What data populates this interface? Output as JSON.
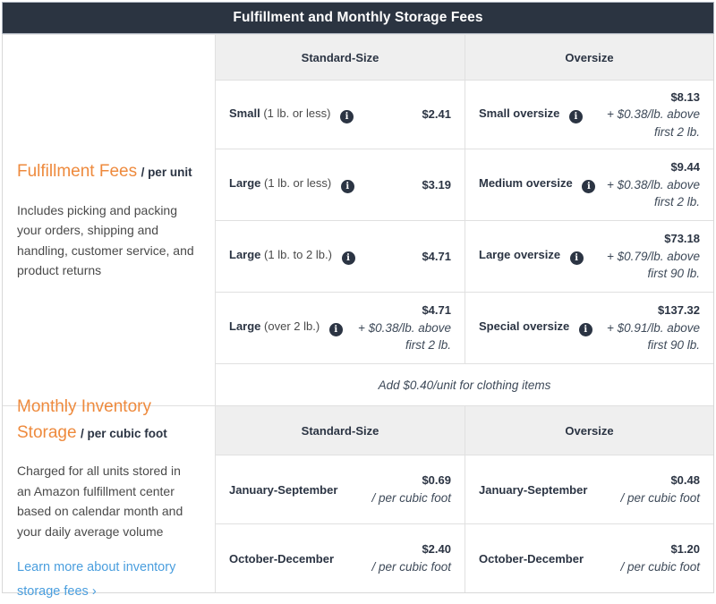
{
  "title": "Fulfillment and Monthly Storage Fees",
  "colors": {
    "header_bg": "#2b3441",
    "accent_orange": "#ee8a3d",
    "link_blue": "#4a9ede",
    "column_header_bg": "#efefef",
    "border": "#e0e0e0"
  },
  "icons": {
    "info": "i"
  },
  "fulfillment": {
    "heading": "Fulfillment Fees",
    "heading_suffix": "/ per unit",
    "description": "Includes picking and packing your orders, shipping and handling, customer service, and product returns",
    "columns": {
      "standard": "Standard-Size",
      "oversize": "Oversize"
    },
    "standard_rows": [
      {
        "name": "Small",
        "detail": "(1 lb. or less)",
        "price": "$2.41",
        "note": ""
      },
      {
        "name": "Large",
        "detail": "(1 lb. or less)",
        "price": "$3.19",
        "note": ""
      },
      {
        "name": "Large",
        "detail": "(1 lb. to 2 lb.)",
        "price": "$4.71",
        "note": ""
      },
      {
        "name": "Large",
        "detail": "(over 2 lb.)",
        "price": "$4.71",
        "note": "+ $0.38/lb. above first 2 lb."
      }
    ],
    "oversize_rows": [
      {
        "name": "Small oversize",
        "price": "$8.13",
        "note": "+ $0.38/lb. above first 2 lb."
      },
      {
        "name": "Medium oversize",
        "price": "$9.44",
        "note": "+ $0.38/lb. above first 2 lb."
      },
      {
        "name": "Large oversize",
        "price": "$73.18",
        "note": "+ $0.79/lb. above first 90 lb."
      },
      {
        "name": "Special oversize",
        "price": "$137.32",
        "note": "+ $0.91/lb. above first 90 lb."
      }
    ],
    "clothing_note": "Add $0.40/unit for clothing items"
  },
  "storage": {
    "heading": "Monthly Inventory Storage",
    "heading_suffix": "/ per cubic foot",
    "description": "Charged for all units stored in an Amazon fulfillment center based on calendar month and your daily average volume",
    "link_label": "Learn more about inventory storage fees ›",
    "columns": {
      "standard": "Standard-Size",
      "oversize": "Oversize"
    },
    "standard_rows": [
      {
        "name": "January-September",
        "price": "$0.69",
        "note": "/ per cubic foot"
      },
      {
        "name": "October-December",
        "price": "$2.40",
        "note": "/ per cubic foot"
      }
    ],
    "oversize_rows": [
      {
        "name": "January-September",
        "price": "$0.48",
        "note": "/ per cubic foot"
      },
      {
        "name": "October-December",
        "price": "$1.20",
        "note": "/ per cubic foot"
      }
    ]
  }
}
